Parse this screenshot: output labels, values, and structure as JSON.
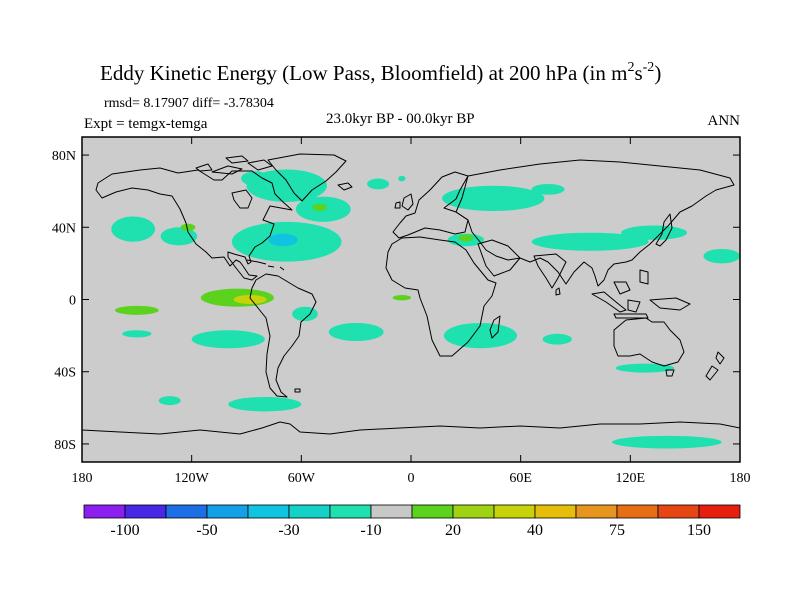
{
  "title": {
    "text": "Eddy Kinetic Energy (Low Pass, Bloomfield) at 200 hPa (in m",
    "sup1": "2",
    "mid": "s",
    "sup2": "-2",
    "close": ")"
  },
  "stats": "rmsd= 8.17907 diff= -3.78304",
  "expt": "Expt = temgx-temga",
  "period": "23.0kyr BP - 00.0kyr BP",
  "season": "ANN",
  "map": {
    "background_color": "#cccccc",
    "coastline_color": "#000000",
    "y_ticks": [
      {
        "lat": 80,
        "label": "80N"
      },
      {
        "lat": 40,
        "label": "40N"
      },
      {
        "lat": 0,
        "label": "0"
      },
      {
        "lat": -40,
        "label": "40S"
      },
      {
        "lat": -80,
        "label": "80S"
      }
    ],
    "x_ticks": [
      {
        "lon": -180,
        "label": "180"
      },
      {
        "lon": -120,
        "label": "120W"
      },
      {
        "lon": -60,
        "label": "60W"
      },
      {
        "lon": 0,
        "label": "0"
      },
      {
        "lon": 60,
        "label": "60E"
      },
      {
        "lon": 120,
        "label": "120E"
      },
      {
        "lon": 180,
        "label": "180"
      }
    ],
    "lon_range": [
      -180,
      180
    ],
    "lat_range": [
      -90,
      90
    ]
  },
  "colorbar": {
    "colors": [
      "#8c1ef0",
      "#4628e6",
      "#1e6ee6",
      "#14a0e6",
      "#0fc3e1",
      "#14d2c8",
      "#1ee1af",
      "#c8c8c8",
      "#5ad21e",
      "#a0d214",
      "#c8d20a",
      "#e6be0a",
      "#e6961e",
      "#e66e14",
      "#e64614",
      "#e61e0f"
    ],
    "labels": [
      {
        "after": 1,
        "text": "-100"
      },
      {
        "after": 3,
        "text": "-50"
      },
      {
        "after": 5,
        "text": "-30"
      },
      {
        "after": 7,
        "text": "-10"
      },
      {
        "after": 9,
        "text": "20"
      },
      {
        "after": 11,
        "text": "40"
      },
      {
        "after": 13,
        "text": "75"
      },
      {
        "after": 15,
        "text": "150"
      }
    ]
  },
  "chart_data": {
    "type": "heatmap",
    "projection": "cylindrical-equidistant",
    "x_range": [
      -180,
      180
    ],
    "y_range": [
      -90,
      90
    ],
    "legend_placement": "bottom",
    "regions": [
      {
        "name": "hudson-arctic",
        "value": -10,
        "lon": -68,
        "lat": 63,
        "rx": 22,
        "ry": 9
      },
      {
        "name": "alaska-pole",
        "value": -10,
        "lon": -85,
        "lat": 67,
        "rx": 8,
        "ry": 4
      },
      {
        "name": "north-atlantic",
        "value": -10,
        "lon": -48,
        "lat": 50,
        "rx": 15,
        "ry": 7
      },
      {
        "name": "north-atlantic-core",
        "value": 20,
        "lon": -50,
        "lat": 51,
        "rx": 4,
        "ry": 2
      },
      {
        "name": "greenland-east",
        "value": -10,
        "lon": -18,
        "lat": 64,
        "rx": 6,
        "ry": 3
      },
      {
        "name": "iceland-spot",
        "value": -10,
        "lon": -5,
        "lat": 67,
        "rx": 2,
        "ry": 1.5
      },
      {
        "name": "scandinavia-asia",
        "value": -10,
        "lon": 45,
        "lat": 56,
        "rx": 28,
        "ry": 7
      },
      {
        "name": "eurasia-north",
        "value": -10,
        "lon": 75,
        "lat": 61,
        "rx": 9,
        "ry": 3
      },
      {
        "name": "pacific-northeast",
        "value": -10,
        "lon": -152,
        "lat": 39,
        "rx": 12,
        "ry": 7
      },
      {
        "name": "pacific-east",
        "value": -10,
        "lon": -127,
        "lat": 35,
        "rx": 10,
        "ry": 5
      },
      {
        "name": "california-coast",
        "value": 20,
        "lon": -122,
        "lat": 40,
        "rx": 4,
        "ry": 2
      },
      {
        "name": "north-america-atlantic",
        "value": -10,
        "lon": -68,
        "lat": 32,
        "rx": 30,
        "ry": 11
      },
      {
        "name": "north-america-atlantic-core",
        "value": -30,
        "lon": -70,
        "lat": 33,
        "rx": 8,
        "ry": 3.5
      },
      {
        "name": "mediterranean",
        "value": -10,
        "lon": 30,
        "lat": 33,
        "rx": 10,
        "ry": 3.5
      },
      {
        "name": "mediterranean-core",
        "value": 20,
        "lon": 30,
        "lat": 34,
        "rx": 4,
        "ry": 2
      },
      {
        "name": "middle-east-asia",
        "value": -10,
        "lon": 98,
        "lat": 32,
        "rx": 32,
        "ry": 5
      },
      {
        "name": "japan-jet",
        "value": -10,
        "lon": 133,
        "lat": 37,
        "rx": 18,
        "ry": 4
      },
      {
        "name": "west-pacific-jet",
        "value": -10,
        "lon": 170,
        "lat": 24,
        "rx": 10,
        "ry": 4
      },
      {
        "name": "tropical-east-pacific",
        "value": 20,
        "lon": -95,
        "lat": 1,
        "rx": 20,
        "ry": 5
      },
      {
        "name": "tropical-east-pacific-core",
        "value": 40,
        "lon": -88,
        "lat": 0,
        "rx": 9,
        "ry": 2.5
      },
      {
        "name": "central-pacific",
        "value": 20,
        "lon": -150,
        "lat": -6,
        "rx": 12,
        "ry": 2.5
      },
      {
        "name": "south-america-east",
        "value": -10,
        "lon": -58,
        "lat": -8,
        "rx": 7,
        "ry": 4
      },
      {
        "name": "tropical-atlantic",
        "value": 20,
        "lon": -5,
        "lat": 1,
        "rx": 5,
        "ry": 1.5
      },
      {
        "name": "south-atlantic",
        "value": -10,
        "lon": -30,
        "lat": -18,
        "rx": 15,
        "ry": 5
      },
      {
        "name": "south-pacific-east",
        "value": -10,
        "lon": -100,
        "lat": -22,
        "rx": 20,
        "ry": 5
      },
      {
        "name": "south-pacific-west",
        "value": -10,
        "lon": -150,
        "lat": -19,
        "rx": 8,
        "ry": 2
      },
      {
        "name": "southern-africa",
        "value": -10,
        "lon": 38,
        "lat": -20,
        "rx": 20,
        "ry": 7
      },
      {
        "name": "indian-ocean-east",
        "value": -10,
        "lon": 80,
        "lat": -22,
        "rx": 8,
        "ry": 3
      },
      {
        "name": "australia-south",
        "value": -10,
        "lon": 128,
        "lat": -38,
        "rx": 16,
        "ry": 2.5
      },
      {
        "name": "southern-ocean-atlantic",
        "value": -10,
        "lon": -80,
        "lat": -58,
        "rx": 20,
        "ry": 4
      },
      {
        "name": "southern-ocean-pacific",
        "value": -10,
        "lon": -132,
        "lat": -56,
        "rx": 6,
        "ry": 2.5
      },
      {
        "name": "antarctic-pacific",
        "value": -10,
        "lon": 140,
        "lat": -79,
        "rx": 30,
        "ry": 3.5
      }
    ]
  }
}
